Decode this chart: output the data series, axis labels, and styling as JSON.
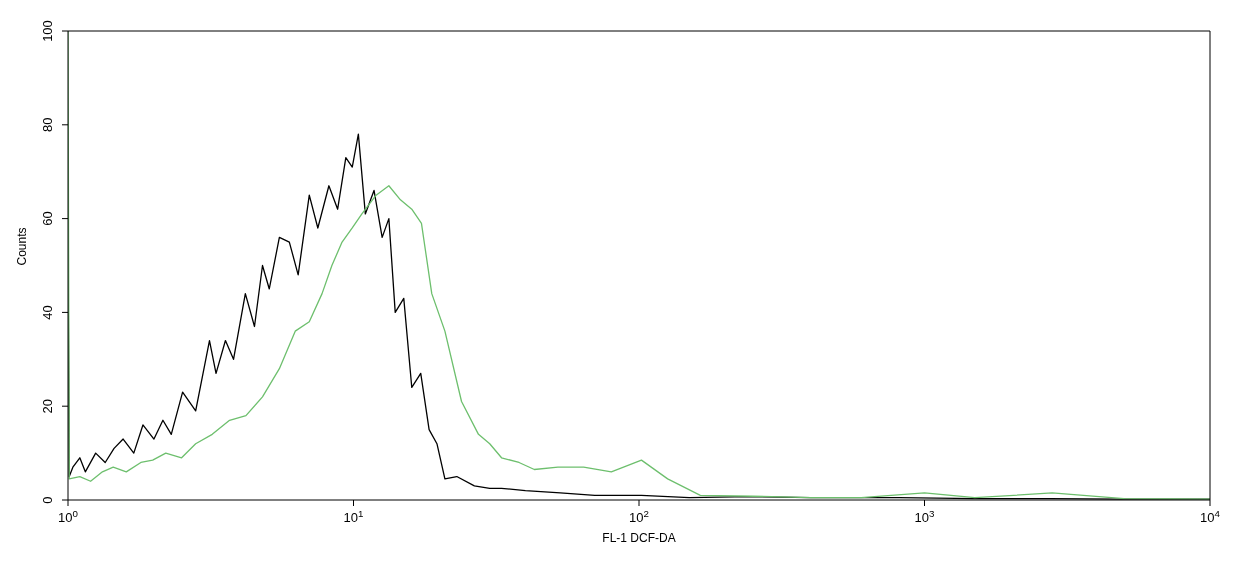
{
  "chart_data": {
    "type": "line",
    "xlabel": "FL-1 DCF-DA",
    "ylabel": "Counts",
    "log": "x",
    "xlim": [
      1,
      10000
    ],
    "xticks": [
      {
        "value": 1,
        "label": "10$^{0}$"
      },
      {
        "value": 10,
        "label": "10$^{1}$"
      },
      {
        "value": 100,
        "label": "10$^{2}$"
      },
      {
        "value": 1000,
        "label": "10$^{3}$"
      },
      {
        "value": 10000,
        "label": "10$^{4}$"
      }
    ],
    "ylim": [
      0,
      100
    ],
    "yticks": [
      0,
      20,
      40,
      60,
      80,
      100
    ],
    "grid": false,
    "series": [
      {
        "color": "#000000",
        "x": [
          1,
          1.01,
          1.04,
          1.1,
          1.15,
          1.25,
          1.35,
          1.45,
          1.56,
          1.7,
          1.83,
          2.0,
          2.15,
          2.3,
          2.52,
          2.8,
          3.13,
          3.3,
          3.56,
          3.8,
          4.18,
          4.5,
          4.8,
          5.07,
          5.5,
          5.96,
          6.4,
          7.0,
          7.5,
          8.2,
          8.8,
          9.4,
          9.9,
          10.4,
          11.0,
          11.8,
          12.6,
          13.3,
          14.0,
          15.0,
          16.0,
          17.2,
          18.4,
          19.6,
          20.9,
          23,
          26.5,
          30,
          33,
          40,
          53,
          70,
          102,
          150,
          245,
          400,
          815,
          1500,
          2750,
          5000,
          10000
        ],
        "values": [
          54,
          5,
          7,
          9,
          6,
          10,
          8,
          11,
          13,
          10,
          16,
          13,
          17,
          14,
          23,
          19,
          34,
          27,
          34,
          30,
          44,
          37,
          50,
          45,
          56,
          55,
          48,
          65,
          58,
          67,
          62,
          73,
          71,
          78,
          61,
          66,
          56,
          60,
          40,
          43,
          24,
          27,
          15,
          12,
          4.5,
          5,
          3,
          2.5,
          2.5,
          2,
          1.5,
          1,
          1,
          0.5,
          0.7,
          0.5,
          0.5,
          0.3,
          0.3,
          0.2,
          0.2
        ]
      },
      {
        "color": "#6dbf6d",
        "x": [
          1,
          1.01,
          1.1,
          1.2,
          1.32,
          1.44,
          1.6,
          1.8,
          1.98,
          2.2,
          2.5,
          2.8,
          3.2,
          3.68,
          4.2,
          4.8,
          5.5,
          6.25,
          7.0,
          7.76,
          8.4,
          9.12,
          9.9,
          10.7,
          12.0,
          13.3,
          14.6,
          16.0,
          17.3,
          18.8,
          20.9,
          23.9,
          27.4,
          30,
          33,
          38,
          43,
          52,
          64,
          80,
          102,
          126,
          164,
          250,
          400,
          600,
          1000,
          1500,
          2800,
          5000,
          10000
        ],
        "values": [
          100,
          4.5,
          5,
          4,
          6,
          7,
          6,
          8,
          8.5,
          10,
          9,
          12,
          14,
          17,
          18,
          22,
          28,
          36,
          38,
          44,
          50,
          55,
          58,
          61,
          65,
          67,
          64,
          62,
          59,
          44,
          36,
          21,
          14,
          12,
          9,
          8,
          6.5,
          7,
          7,
          6,
          8.5,
          4.5,
          1,
          0.8,
          0.5,
          0.5,
          1.5,
          0.5,
          1.5,
          0.3,
          0.2
        ]
      }
    ]
  }
}
